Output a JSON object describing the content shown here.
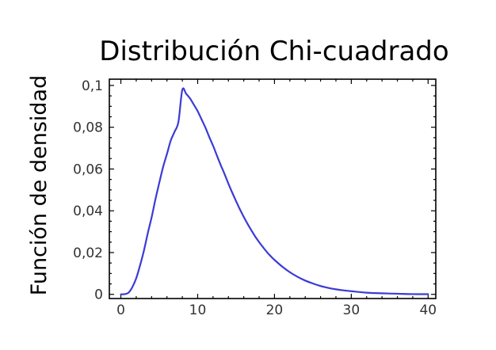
{
  "chart_data": {
    "type": "line",
    "title": "Distribución Chi-cuadrado",
    "xlabel": "",
    "ylabel": "Función de densidad",
    "xlim": [
      -1.5,
      41
    ],
    "ylim": [
      -0.002,
      0.103
    ],
    "x_ticks": [
      0,
      10,
      20,
      30,
      40
    ],
    "x_tick_labels": [
      "0",
      "10",
      "20",
      "30",
      "40"
    ],
    "y_ticks": [
      0,
      0.02,
      0.04,
      0.06,
      0.08,
      0.1
    ],
    "y_tick_labels": [
      "0",
      "0,02",
      "0,04",
      "0,06",
      "0,08",
      "0,1"
    ],
    "grid": false,
    "series": [
      {
        "color": "#3b3bd6",
        "x": [
          0,
          0.5,
          1,
          1.5,
          2,
          2.5,
          3,
          3.5,
          4,
          4.5,
          5,
          5.5,
          6,
          6.5,
          7,
          7.5,
          8,
          8.5,
          9,
          9.5,
          10,
          10.5,
          11,
          11.5,
          12,
          12.5,
          13,
          13.5,
          14,
          14.5,
          15,
          15.5,
          16,
          16.5,
          17,
          17.5,
          18,
          18.5,
          19,
          19.5,
          20,
          21,
          22,
          23,
          24,
          25,
          26,
          27,
          28,
          29,
          30,
          32,
          34,
          36,
          38,
          40
        ],
        "y": [
          0,
          0.0001,
          0.0008,
          0.0035,
          0.0077,
          0.0139,
          0.0209,
          0.0292,
          0.0368,
          0.0455,
          0.0534,
          0.061,
          0.0672,
          0.0737,
          0.0779,
          0.0827,
          0.0979,
          0.096,
          0.0938,
          0.0908,
          0.0877,
          0.0838,
          0.0799,
          0.0754,
          0.0712,
          0.0665,
          0.0619,
          0.0576,
          0.053,
          0.0487,
          0.0446,
          0.0407,
          0.0371,
          0.0337,
          0.0306,
          0.0276,
          0.025,
          0.0226,
          0.0203,
          0.0183,
          0.0165,
          0.0133,
          0.0106,
          0.0084,
          0.0066,
          0.0052,
          0.004,
          0.0031,
          0.0024,
          0.0019,
          0.0015,
          0.0008,
          0.0005,
          0.0003,
          0.0001,
          0.0001
        ]
      }
    ]
  }
}
